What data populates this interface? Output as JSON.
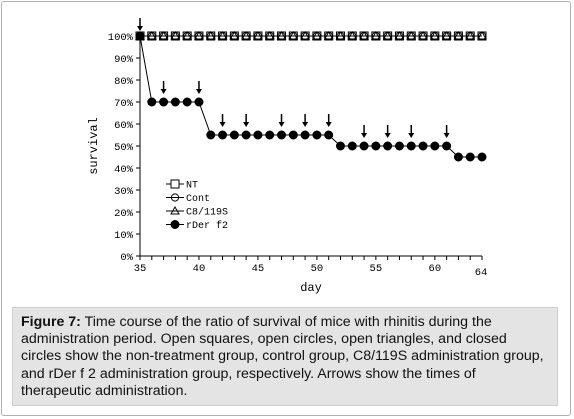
{
  "chart_data": {
    "type": "line",
    "xlabel": "day",
    "ylabel": "survival",
    "xlim": [
      35,
      64
    ],
    "ylim": [
      0,
      100
    ],
    "x_ticks": [
      35,
      40,
      45,
      50,
      55,
      60
    ],
    "x_end_label": "64",
    "y_ticks": [
      "0%",
      "10%",
      "20%",
      "30%",
      "40%",
      "50%",
      "60%",
      "70%",
      "80%",
      "90%",
      "100%"
    ],
    "legend_position": "left-middle",
    "series": [
      {
        "name": "NT",
        "marker": "open-square",
        "x": [
          35,
          36,
          37,
          38,
          39,
          40,
          41,
          42,
          43,
          44,
          45,
          46,
          47,
          48,
          49,
          50,
          51,
          52,
          53,
          54,
          55,
          56,
          57,
          58,
          59,
          60,
          61,
          62,
          63,
          64
        ],
        "y": [
          100,
          100,
          100,
          100,
          100,
          100,
          100,
          100,
          100,
          100,
          100,
          100,
          100,
          100,
          100,
          100,
          100,
          100,
          100,
          100,
          100,
          100,
          100,
          100,
          100,
          100,
          100,
          100,
          100,
          100
        ]
      },
      {
        "name": "Cont",
        "marker": "open-circle",
        "x": [
          35,
          36,
          37,
          38,
          39,
          40,
          41,
          42,
          43,
          44,
          45,
          46,
          47,
          48,
          49,
          50,
          51,
          52,
          53,
          54,
          55,
          56,
          57,
          58,
          59,
          60,
          61,
          62,
          63,
          64
        ],
        "y": [
          100,
          100,
          100,
          100,
          100,
          100,
          100,
          100,
          100,
          100,
          100,
          100,
          100,
          100,
          100,
          100,
          100,
          100,
          100,
          100,
          100,
          100,
          100,
          100,
          100,
          100,
          100,
          100,
          100,
          100
        ]
      },
      {
        "name": "C8/119S",
        "marker": "open-triangle",
        "x": [
          35,
          36,
          37,
          38,
          39,
          40,
          41,
          42,
          43,
          44,
          45,
          46,
          47,
          48,
          49,
          50,
          51,
          52,
          53,
          54,
          55,
          56,
          57,
          58,
          59,
          60,
          61,
          62,
          63,
          64
        ],
        "y": [
          100,
          100,
          100,
          100,
          100,
          100,
          100,
          100,
          100,
          100,
          100,
          100,
          100,
          100,
          100,
          100,
          100,
          100,
          100,
          100,
          100,
          100,
          100,
          100,
          100,
          100,
          100,
          100,
          100,
          100
        ]
      },
      {
        "name": "rDer f2",
        "marker": "filled-circle",
        "x": [
          35,
          36,
          37,
          38,
          39,
          40,
          41,
          42,
          43,
          44,
          45,
          46,
          47,
          48,
          49,
          50,
          51,
          52,
          53,
          54,
          55,
          56,
          57,
          58,
          59,
          60,
          61,
          62,
          63,
          64
        ],
        "y": [
          100,
          70,
          70,
          70,
          70,
          70,
          55,
          55,
          55,
          55,
          55,
          55,
          55,
          55,
          55,
          55,
          55,
          50,
          50,
          50,
          50,
          50,
          50,
          50,
          50,
          50,
          50,
          45,
          45,
          45
        ]
      }
    ],
    "arrows_at_x": [
      35,
      37,
      40,
      42,
      44,
      47,
      49,
      51,
      54,
      56,
      58,
      61
    ]
  },
  "caption": {
    "label": "Figure 7:",
    "text": " Time course of the ratio of survival of mice with rhinitis during the administration period. Open squares, open circles, open triangles, and closed circles show the non-treatment group, control group, C8/119S administration group, and rDer f 2 administration group, respectively. Arrows show the times of therapeutic administration."
  },
  "colors": {
    "ink": "#000000",
    "caption_bg": "#e4e4e4",
    "frame": "#b0b0b0"
  }
}
